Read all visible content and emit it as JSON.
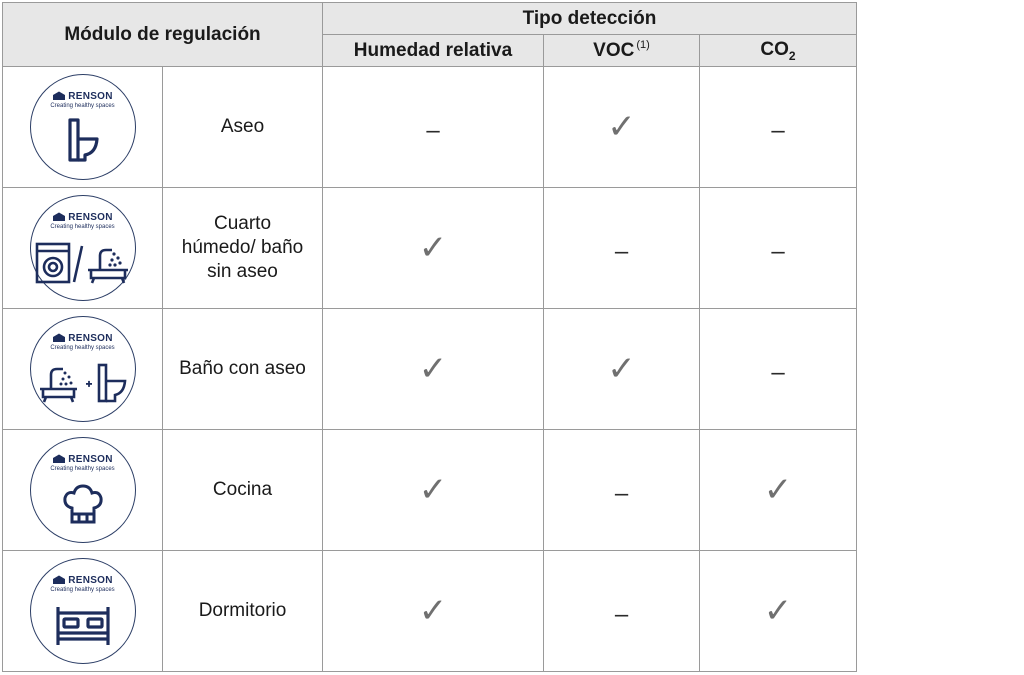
{
  "header": {
    "module_col": "Módulo de regulación",
    "detection_group": "Tipo detección",
    "humidity": "Humedad relativa",
    "voc": "VOC",
    "voc_note": "(1)",
    "co2_main": "CO",
    "co2_sub": "2"
  },
  "logo": {
    "brand": "RENSON",
    "tagline": "Creating healthy spaces"
  },
  "symbols": {
    "check": "✓",
    "dash": "–"
  },
  "rows": [
    {
      "name": "Aseo",
      "icon": "toilet-icon",
      "humidity": "dash",
      "voc": "check",
      "co2": "dash"
    },
    {
      "name": "Cuarto húmedo/ baño sin aseo",
      "icon": "washer-bath-icon",
      "humidity": "check",
      "voc": "dash",
      "co2": "dash"
    },
    {
      "name": "Baño con aseo",
      "icon": "bath-toilet-icon",
      "humidity": "check",
      "voc": "check",
      "co2": "dash"
    },
    {
      "name": "Cocina",
      "icon": "chef-hat-icon",
      "humidity": "check",
      "voc": "dash",
      "co2": "check"
    },
    {
      "name": "Dormitorio",
      "icon": "bed-icon",
      "humidity": "check",
      "voc": "dash",
      "co2": "check"
    }
  ],
  "colors": {
    "header_bg": "#e7e7e7",
    "brand_navy": "#1d2d5c",
    "check_gray": "#707070"
  }
}
